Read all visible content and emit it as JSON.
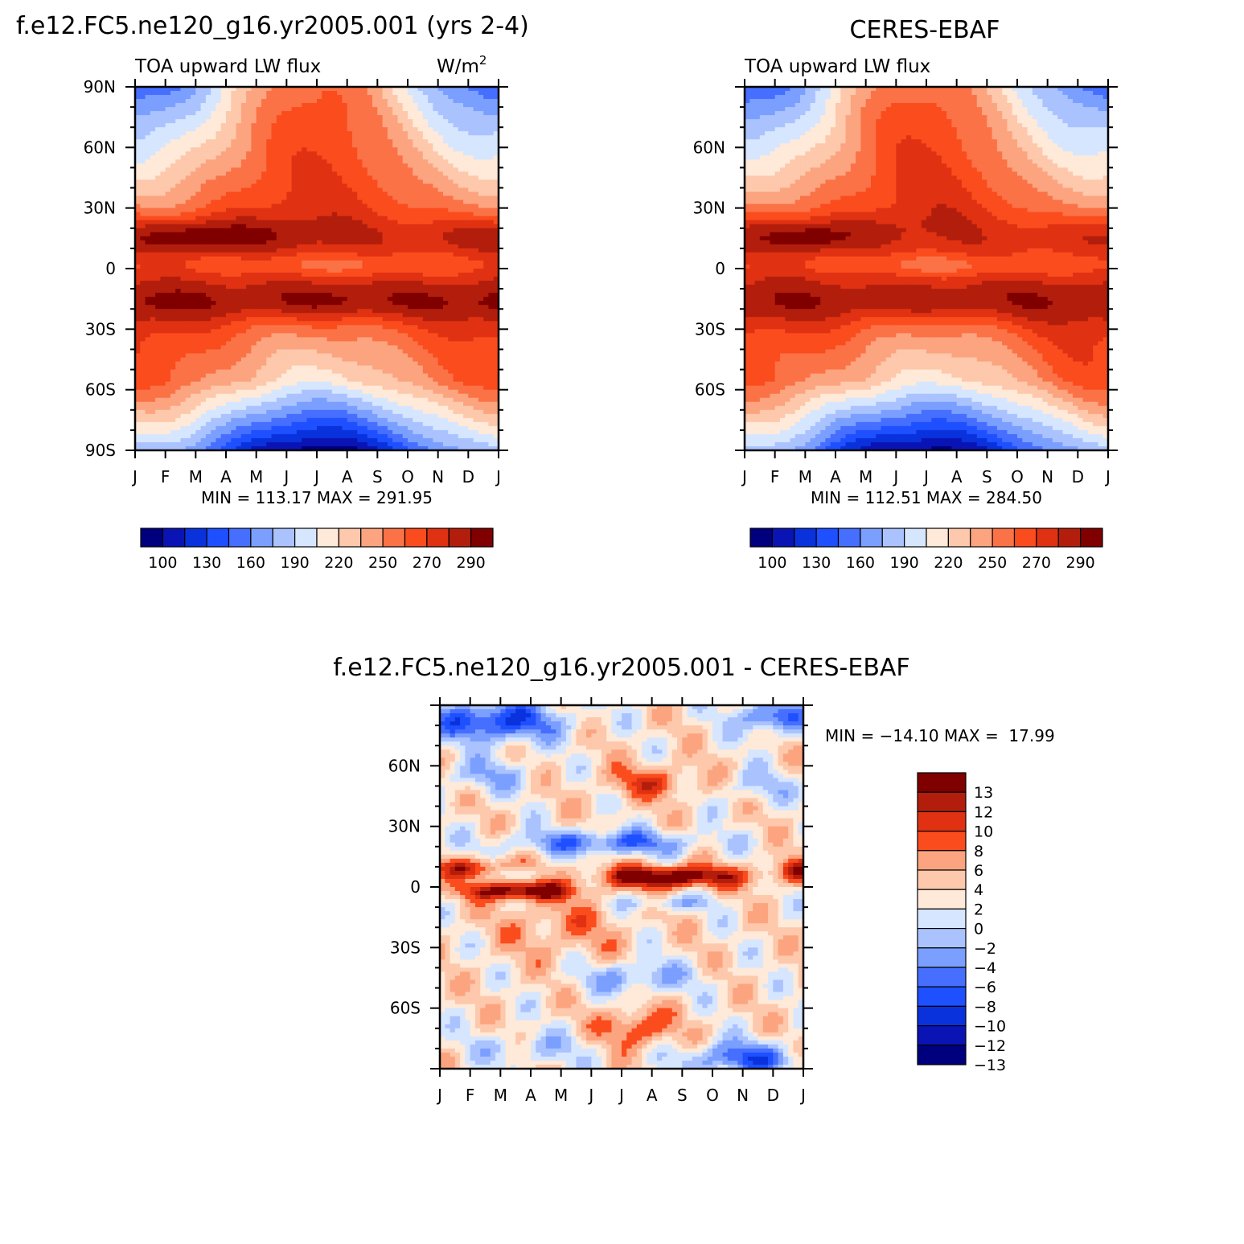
{
  "months": [
    "J",
    "F",
    "M",
    "A",
    "M",
    "J",
    "J",
    "A",
    "S",
    "O",
    "N",
    "D",
    "J"
  ],
  "flux_colors": [
    "#00007f",
    "#0a14b4",
    "#0a32dc",
    "#1e50ff",
    "#466eff",
    "#7b9fff",
    "#aac3ff",
    "#d6e6ff",
    "#ffe9d8",
    "#fdc8ab",
    "#fca47f",
    "#fb7246",
    "#fb4c1e",
    "#e03212",
    "#b31e0c",
    "#800000"
  ],
  "flux_levels": [
    "100",
    "130",
    "160",
    "190",
    "220",
    "250",
    "270",
    "290"
  ],
  "diff_colors": [
    "#00007f",
    "#0a14b4",
    "#0a32dc",
    "#1e50ff",
    "#466eff",
    "#7b9fff",
    "#aac3ff",
    "#d6e6ff",
    "#ffe9d8",
    "#fdc8ab",
    "#fca47f",
    "#fb4c1e",
    "#e03212",
    "#b31e0c",
    "#800000"
  ],
  "diff_levels": [
    "-13",
    "-12",
    "-10",
    "-8",
    "-6",
    "-4",
    "-2",
    "0",
    "2",
    "4",
    "6",
    "8",
    "10",
    "12",
    "13"
  ],
  "chart_data": [
    {
      "type": "heatmap",
      "title": "f.e12.FC5.ne120_g16.yr2005.001 (yrs 2-4)",
      "subtitle": "TOA upward LW flux",
      "units": "W/m²",
      "x": [
        "J",
        "F",
        "M",
        "A",
        "M",
        "J",
        "J",
        "A",
        "S",
        "O",
        "N",
        "D",
        "J"
      ],
      "y_ticks": [
        "90N",
        "60N",
        "30N",
        "0",
        "30S",
        "60S",
        "90S"
      ],
      "ylim": [
        -90,
        90
      ],
      "stats": "MIN = 113.17 MAX = 291.95",
      "min": 113.17,
      "max": 291.95,
      "colorbar_labels": [
        "100",
        "130",
        "160",
        "190",
        "220",
        "250",
        "270",
        "290"
      ],
      "features": [
        {
          "lat": 15,
          "month_center": 2.0,
          "value": 290
        },
        {
          "lat": -16,
          "month_center": 6.5,
          "value": 285
        },
        {
          "lat": -85,
          "month_center": 7.0,
          "value": 120
        }
      ]
    },
    {
      "type": "heatmap",
      "title": "CERES-EBAF",
      "subtitle": "TOA upward LW flux",
      "x": [
        "J",
        "F",
        "M",
        "A",
        "M",
        "J",
        "J",
        "A",
        "S",
        "O",
        "N",
        "D",
        "J"
      ],
      "y_ticks": [
        "60N",
        "30N",
        "0",
        "30S",
        "60S"
      ],
      "ylim": [
        -90,
        90
      ],
      "stats": "MIN = 112.51 MAX = 284.50",
      "min": 112.51,
      "max": 284.5,
      "colorbar_labels": [
        "100",
        "130",
        "160",
        "190",
        "220",
        "250",
        "270",
        "290"
      ],
      "features": [
        {
          "lat": 15,
          "month_center": 1.5,
          "value": 280
        },
        {
          "lat": -15,
          "month_center": 6.5,
          "value": 280
        },
        {
          "lat": -85,
          "month_center": 7.0,
          "value": 118
        }
      ]
    },
    {
      "type": "heatmap",
      "title": "f.e12.FC5.ne120_g16.yr2005.001 - CERES-EBAF",
      "x": [
        "J",
        "F",
        "M",
        "A",
        "M",
        "J",
        "J",
        "A",
        "S",
        "O",
        "N",
        "D",
        "J"
      ],
      "y_ticks": [
        "60N",
        "30N",
        "0",
        "30S",
        "60S"
      ],
      "ylim": [
        -90,
        90
      ],
      "stats": "MIN = -14.10 MAX =  17.99",
      "min": -14.1,
      "max": 17.99,
      "colorbar_labels": [
        "13",
        "12",
        "10",
        "8",
        "6",
        "4",
        "2",
        "0",
        "-2",
        "-4",
        "-6",
        "-8",
        "-10",
        "-12",
        "-13"
      ],
      "features": [
        {
          "lat": 5,
          "month_center": 7.5,
          "value": 14
        },
        {
          "lat": -2,
          "month_center": 2.5,
          "value": 14
        },
        {
          "lat": 25,
          "month_center": 6.5,
          "value": -7
        },
        {
          "lat": 82,
          "month_center": 1.5,
          "value": -9
        },
        {
          "lat": -85,
          "month_center": 9.5,
          "value": -9
        }
      ]
    }
  ]
}
